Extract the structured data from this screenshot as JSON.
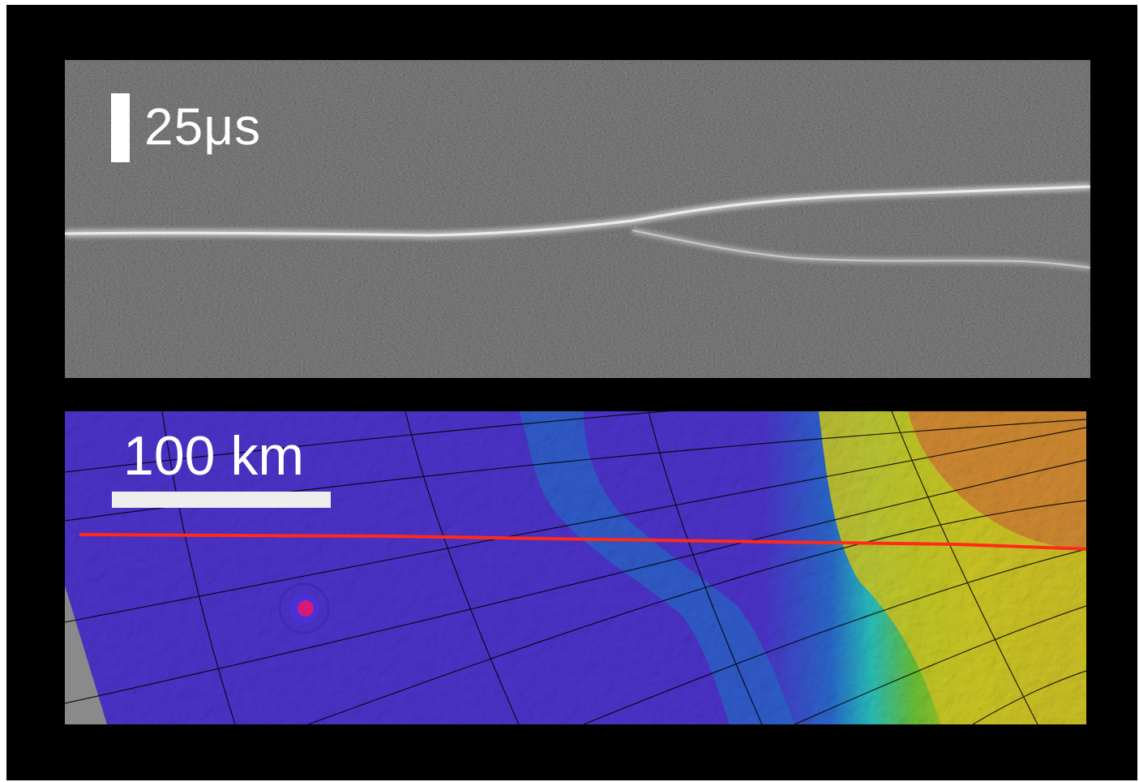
{
  "radargram": {
    "time_scale_label": "25μs"
  },
  "map": {
    "distance_scale_label": "100 km",
    "track_color": "#ff2a1a",
    "colors": {
      "low": "#5a3cf0",
      "mid_low": "#2f7cf2",
      "mid": "#2fe3e0",
      "mid_high": "#7fe43a",
      "high_yellow": "#f2ec2a",
      "high": "#f7a23a",
      "crater_rim": "#d61a7a",
      "nodata": "#8a8a8a"
    }
  }
}
